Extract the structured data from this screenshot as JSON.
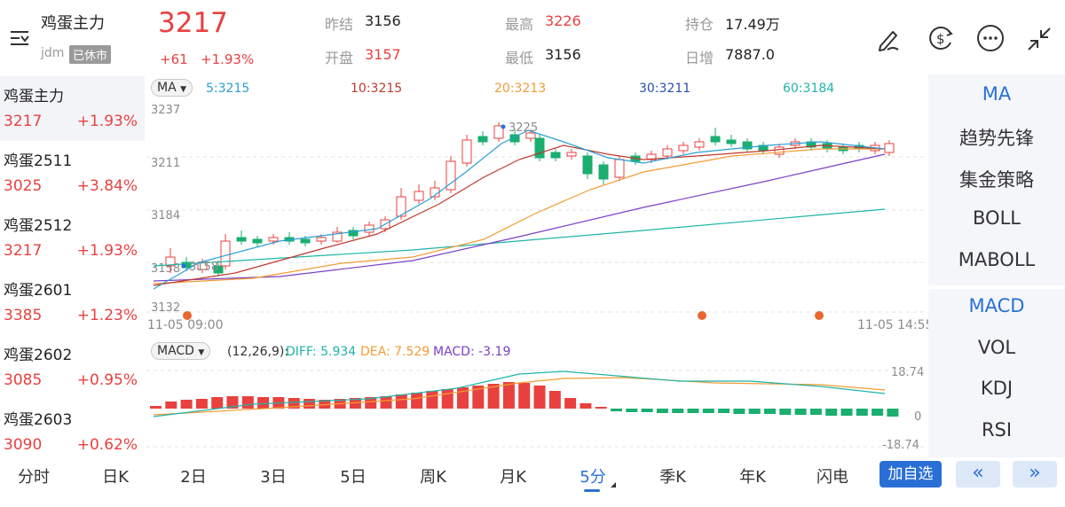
{
  "header": {
    "title": "鸡蛋主力",
    "exchange": "jdm",
    "status_badge": "已休市",
    "price": "3217",
    "change": "+61",
    "change_pct": "+1.93%",
    "prev_close_label": "昨结",
    "prev_close": "3156",
    "open_label": "开盘",
    "open": "3157",
    "high_label": "最高",
    "high": "3226",
    "low_label": "最低",
    "low": "3156",
    "oi_label": "持仓",
    "oi": "17.49万",
    "oi_change_label": "日增",
    "oi_change": "7887.0",
    "icons": [
      "menu-filter-icon",
      "pen-icon",
      "currency-icon",
      "more-icon",
      "collapse-icon"
    ]
  },
  "sidebar": {
    "items": [
      {
        "name": "鸡蛋主力",
        "price": "3217",
        "change": "+1.93%"
      },
      {
        "name": "鸡蛋2511",
        "price": "3025",
        "change": "+3.84%"
      },
      {
        "name": "鸡蛋2512",
        "price": "3217",
        "change": "+1.93%"
      },
      {
        "name": "鸡蛋2601",
        "price": "3385",
        "change": "+1.23%"
      },
      {
        "name": "鸡蛋2602",
        "price": "3085",
        "change": "+0.95%"
      },
      {
        "name": "鸡蛋2603",
        "price": "3090",
        "change": "+0.62%"
      }
    ]
  },
  "main_chart": {
    "indicator": "MA",
    "ma_labels": [
      "5:3215",
      "10:3215",
      "20:3213",
      "30:3211",
      "60:3184"
    ],
    "y_ticks": [
      "3237",
      "3211",
      "3184",
      "3158",
      "3132"
    ],
    "time_start": "11-05 09:00",
    "time_end": "11-05 14:55",
    "high_marker": "3225",
    "low_marker": "3158"
  },
  "sub_chart": {
    "indicator": "MACD",
    "params": "(12,26,9):",
    "diff": "DIFF: 5.934",
    "dea": "DEA: 7.529",
    "macd": "MACD: -3.19",
    "y_ticks": [
      "18.74",
      "0",
      "-18.74"
    ]
  },
  "right_panel": {
    "main_indicators": [
      "MA",
      "趋势先锋",
      "集金策略",
      "BOLL",
      "MABOLL"
    ],
    "sub_indicators": [
      "MACD",
      "VOL",
      "KDJ",
      "RSI"
    ]
  },
  "tabs": {
    "items": [
      "分时",
      "日K",
      "2日",
      "3日",
      "5日",
      "周K",
      "月K",
      "5分",
      "季K",
      "年K",
      "闪电"
    ],
    "active": "5分",
    "add_watchlist": "加自选",
    "prev": "«",
    "next": "»"
  },
  "colors": {
    "up": "#e8413f",
    "down": "#1aae6f",
    "accent": "#2a6fd6",
    "ma5": "#2a9fd6",
    "ma10": "#c0392b",
    "ma20": "#f39c34",
    "ma30": "#7b3fc6",
    "ma60": "#1fb5a8"
  }
}
